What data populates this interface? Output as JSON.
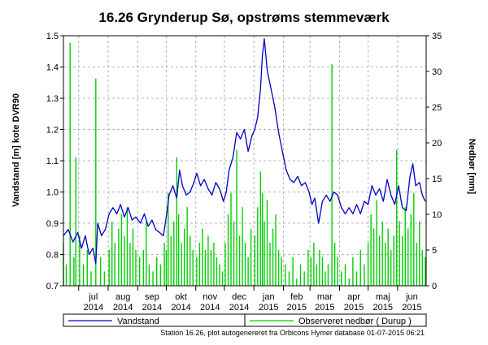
{
  "chart_data": {
    "type": "line",
    "title": "16.26 Grynderup Sø, opstrøms stemmeværk",
    "ylabel_left": "Vandstand [m] kote DVR90",
    "ylabel_right": "Nedbør [mm]",
    "ylim_left": [
      0.7,
      1.5
    ],
    "ylim_right": [
      0,
      35
    ],
    "yticks_left": [
      "0.7",
      "0.8",
      "0.9",
      "1.0",
      "1.1",
      "1.2",
      "1.3",
      "1.4",
      "1.5"
    ],
    "yticks_right": [
      "0",
      "5",
      "10",
      "15",
      "20",
      "25",
      "30",
      "35"
    ],
    "x_range": [
      "2014-06-15",
      "2015-07-01"
    ],
    "xticks": [
      {
        "month": "jul",
        "year": "2014",
        "date": "2014-07-01"
      },
      {
        "month": "aug",
        "year": "2014",
        "date": "2014-08-01"
      },
      {
        "month": "sep",
        "year": "2014",
        "date": "2014-09-01"
      },
      {
        "month": "okt",
        "year": "2014",
        "date": "2014-10-01"
      },
      {
        "month": "nov",
        "year": "2014",
        "date": "2014-11-01"
      },
      {
        "month": "dec",
        "year": "2014",
        "date": "2014-12-01"
      },
      {
        "month": "jan",
        "year": "2015",
        "date": "2015-01-01"
      },
      {
        "month": "feb",
        "year": "2015",
        "date": "2015-02-01"
      },
      {
        "month": "mar",
        "year": "2015",
        "date": "2015-03-01"
      },
      {
        "month": "apr",
        "year": "2015",
        "date": "2015-04-01"
      },
      {
        "month": "maj",
        "year": "2015",
        "date": "2015-05-01"
      },
      {
        "month": "jun",
        "year": "2015",
        "date": "2015-06-01"
      }
    ],
    "grid": true,
    "legend_position": "bottom",
    "series": [
      {
        "name": "Vandstand",
        "axis": "left",
        "color": "#0000c8",
        "points": [
          [
            "2014-06-15",
            0.86
          ],
          [
            "2014-06-20",
            0.88
          ],
          [
            "2014-06-25",
            0.84
          ],
          [
            "2014-06-30",
            0.87
          ],
          [
            "2014-07-04",
            0.82
          ],
          [
            "2014-07-08",
            0.86
          ],
          [
            "2014-07-12",
            0.8
          ],
          [
            "2014-07-16",
            0.82
          ],
          [
            "2014-07-19",
            0.77
          ],
          [
            "2014-07-21",
            0.9
          ],
          [
            "2014-07-25",
            0.86
          ],
          [
            "2014-07-29",
            0.88
          ],
          [
            "2014-08-02",
            0.93
          ],
          [
            "2014-08-06",
            0.95
          ],
          [
            "2014-08-10",
            0.93
          ],
          [
            "2014-08-14",
            0.96
          ],
          [
            "2014-08-18",
            0.92
          ],
          [
            "2014-08-22",
            0.95
          ],
          [
            "2014-08-26",
            0.91
          ],
          [
            "2014-08-30",
            0.92
          ],
          [
            "2014-09-04",
            0.9
          ],
          [
            "2014-09-08",
            0.93
          ],
          [
            "2014-09-12",
            0.89
          ],
          [
            "2014-09-16",
            0.91
          ],
          [
            "2014-09-20",
            0.88
          ],
          [
            "2014-09-24",
            0.87
          ],
          [
            "2014-09-28",
            0.86
          ],
          [
            "2014-10-01",
            0.92
          ],
          [
            "2014-10-04",
            0.99
          ],
          [
            "2014-10-08",
            1.02
          ],
          [
            "2014-10-12",
            0.98
          ],
          [
            "2014-10-15",
            1.07
          ],
          [
            "2014-10-18",
            1.02
          ],
          [
            "2014-10-22",
            0.99
          ],
          [
            "2014-10-26",
            1.0
          ],
          [
            "2014-10-30",
            1.03
          ],
          [
            "2014-11-02",
            1.06
          ],
          [
            "2014-11-06",
            1.02
          ],
          [
            "2014-11-10",
            1.04
          ],
          [
            "2014-11-14",
            1.01
          ],
          [
            "2014-11-18",
            0.99
          ],
          [
            "2014-11-22",
            1.03
          ],
          [
            "2014-11-26",
            1.01
          ],
          [
            "2014-11-30",
            0.97
          ],
          [
            "2014-12-03",
            1.0
          ],
          [
            "2014-12-06",
            1.07
          ],
          [
            "2014-12-10",
            1.11
          ],
          [
            "2014-12-14",
            1.19
          ],
          [
            "2014-12-18",
            1.17
          ],
          [
            "2014-12-22",
            1.2
          ],
          [
            "2014-12-26",
            1.13
          ],
          [
            "2014-12-30",
            1.18
          ],
          [
            "2015-01-02",
            1.2
          ],
          [
            "2015-01-05",
            1.24
          ],
          [
            "2015-01-08",
            1.33
          ],
          [
            "2015-01-10",
            1.44
          ],
          [
            "2015-01-12",
            1.49
          ],
          [
            "2015-01-15",
            1.39
          ],
          [
            "2015-01-19",
            1.33
          ],
          [
            "2015-01-23",
            1.27
          ],
          [
            "2015-01-27",
            1.19
          ],
          [
            "2015-01-31",
            1.13
          ],
          [
            "2015-02-04",
            1.07
          ],
          [
            "2015-02-08",
            1.04
          ],
          [
            "2015-02-12",
            1.03
          ],
          [
            "2015-02-16",
            1.05
          ],
          [
            "2015-02-20",
            1.02
          ],
          [
            "2015-02-24",
            1.03
          ],
          [
            "2015-02-28",
            1.0
          ],
          [
            "2015-03-03",
            0.96
          ],
          [
            "2015-03-06",
            0.98
          ],
          [
            "2015-03-10",
            0.9
          ],
          [
            "2015-03-14",
            0.97
          ],
          [
            "2015-03-18",
            0.99
          ],
          [
            "2015-03-22",
            0.97
          ],
          [
            "2015-03-26",
            1.0
          ],
          [
            "2015-03-30",
            0.99
          ],
          [
            "2015-04-03",
            0.95
          ],
          [
            "2015-04-07",
            0.93
          ],
          [
            "2015-04-11",
            0.95
          ],
          [
            "2015-04-15",
            0.93
          ],
          [
            "2015-04-19",
            0.96
          ],
          [
            "2015-04-23",
            0.93
          ],
          [
            "2015-04-27",
            0.97
          ],
          [
            "2015-05-01",
            0.96
          ],
          [
            "2015-05-05",
            1.02
          ],
          [
            "2015-05-09",
            0.99
          ],
          [
            "2015-05-13",
            1.01
          ],
          [
            "2015-05-17",
            0.97
          ],
          [
            "2015-05-21",
            1.04
          ],
          [
            "2015-05-25",
            0.99
          ],
          [
            "2015-05-29",
            0.96
          ],
          [
            "2015-06-02",
            1.02
          ],
          [
            "2015-06-06",
            0.95
          ],
          [
            "2015-06-10",
            0.94
          ],
          [
            "2015-06-14",
            1.05
          ],
          [
            "2015-06-17",
            1.09
          ],
          [
            "2015-06-20",
            1.02
          ],
          [
            "2015-06-24",
            1.03
          ],
          [
            "2015-06-27",
            0.99
          ],
          [
            "2015-06-30",
            0.97
          ]
        ]
      },
      {
        "name": "Observeret nedbør ( Durup )",
        "axis": "right",
        "color": "#00d000",
        "bars": [
          [
            "2014-06-15",
            6
          ],
          [
            "2014-06-18",
            3
          ],
          [
            "2014-06-22",
            34
          ],
          [
            "2014-06-26",
            4
          ],
          [
            "2014-06-28",
            18
          ],
          [
            "2014-07-02",
            7
          ],
          [
            "2014-07-06",
            3
          ],
          [
            "2014-07-10",
            5
          ],
          [
            "2014-07-14",
            2
          ],
          [
            "2014-07-19",
            29
          ],
          [
            "2014-07-24",
            4
          ],
          [
            "2014-07-28",
            2
          ],
          [
            "2014-08-02",
            5
          ],
          [
            "2014-08-05",
            9
          ],
          [
            "2014-08-08",
            6
          ],
          [
            "2014-08-12",
            8
          ],
          [
            "2014-08-15",
            10
          ],
          [
            "2014-08-18",
            7
          ],
          [
            "2014-08-21",
            11
          ],
          [
            "2014-08-24",
            6
          ],
          [
            "2014-08-27",
            8
          ],
          [
            "2014-08-30",
            5
          ],
          [
            "2014-09-03",
            4
          ],
          [
            "2014-09-07",
            5
          ],
          [
            "2014-09-10",
            9
          ],
          [
            "2014-09-13",
            3
          ],
          [
            "2014-09-17",
            2
          ],
          [
            "2014-09-21",
            4
          ],
          [
            "2014-09-25",
            3
          ],
          [
            "2014-09-29",
            6
          ],
          [
            "2014-10-01",
            5
          ],
          [
            "2014-10-03",
            13
          ],
          [
            "2014-10-06",
            7
          ],
          [
            "2014-10-09",
            9
          ],
          [
            "2014-10-12",
            18
          ],
          [
            "2014-10-14",
            10
          ],
          [
            "2014-10-17",
            6
          ],
          [
            "2014-10-20",
            8
          ],
          [
            "2014-10-23",
            11
          ],
          [
            "2014-10-26",
            7
          ],
          [
            "2014-10-29",
            5
          ],
          [
            "2014-11-02",
            4
          ],
          [
            "2014-11-05",
            6
          ],
          [
            "2014-11-08",
            8
          ],
          [
            "2014-11-11",
            5
          ],
          [
            "2014-11-14",
            7
          ],
          [
            "2014-11-17",
            5
          ],
          [
            "2014-11-20",
            6
          ],
          [
            "2014-11-23",
            4
          ],
          [
            "2014-11-26",
            3
          ],
          [
            "2014-11-29",
            2
          ],
          [
            "2014-12-02",
            6
          ],
          [
            "2014-12-05",
            10
          ],
          [
            "2014-12-08",
            13
          ],
          [
            "2014-12-11",
            9
          ],
          [
            "2014-12-14",
            19
          ],
          [
            "2014-12-17",
            7
          ],
          [
            "2014-12-20",
            11
          ],
          [
            "2014-12-23",
            6
          ],
          [
            "2014-12-26",
            4
          ],
          [
            "2014-12-29",
            8
          ],
          [
            "2015-01-02",
            7
          ],
          [
            "2015-01-05",
            11
          ],
          [
            "2015-01-08",
            16
          ],
          [
            "2015-01-10",
            13
          ],
          [
            "2015-01-12",
            9
          ],
          [
            "2015-01-15",
            12
          ],
          [
            "2015-01-18",
            6
          ],
          [
            "2015-01-21",
            8
          ],
          [
            "2015-01-24",
            10
          ],
          [
            "2015-01-27",
            5
          ],
          [
            "2015-01-30",
            4
          ],
          [
            "2015-02-03",
            3
          ],
          [
            "2015-02-07",
            2
          ],
          [
            "2015-02-11",
            4
          ],
          [
            "2015-02-15",
            1
          ],
          [
            "2015-02-19",
            3
          ],
          [
            "2015-02-23",
            2
          ],
          [
            "2015-02-27",
            5
          ],
          [
            "2015-03-02",
            4
          ],
          [
            "2015-03-05",
            6
          ],
          [
            "2015-03-08",
            3
          ],
          [
            "2015-03-11",
            5
          ],
          [
            "2015-03-14",
            4
          ],
          [
            "2015-03-17",
            2
          ],
          [
            "2015-03-20",
            3
          ],
          [
            "2015-03-24",
            31
          ],
          [
            "2015-03-27",
            6
          ],
          [
            "2015-03-30",
            4
          ],
          [
            "2015-04-03",
            2
          ],
          [
            "2015-04-07",
            3
          ],
          [
            "2015-04-11",
            1
          ],
          [
            "2015-04-15",
            4
          ],
          [
            "2015-04-19",
            2
          ],
          [
            "2015-04-23",
            5
          ],
          [
            "2015-04-27",
            3
          ],
          [
            "2015-05-01",
            6
          ],
          [
            "2015-05-04",
            10
          ],
          [
            "2015-05-07",
            8
          ],
          [
            "2015-05-10",
            12
          ],
          [
            "2015-05-13",
            7
          ],
          [
            "2015-05-16",
            9
          ],
          [
            "2015-05-19",
            6
          ],
          [
            "2015-05-22",
            8
          ],
          [
            "2015-05-25",
            5
          ],
          [
            "2015-05-28",
            7
          ],
          [
            "2015-05-31",
            19
          ],
          [
            "2015-06-03",
            9
          ],
          [
            "2015-06-06",
            7
          ],
          [
            "2015-06-09",
            11
          ],
          [
            "2015-06-12",
            8
          ],
          [
            "2015-06-15",
            10
          ],
          [
            "2015-06-18",
            13
          ],
          [
            "2015-06-21",
            6
          ],
          [
            "2015-06-24",
            9
          ],
          [
            "2015-06-27",
            5
          ],
          [
            "2015-06-30",
            4
          ]
        ]
      }
    ],
    "footer": "Station 16.26, plot autogenereret fra Orbicons Hymer database 01-07-2015 06:21"
  }
}
